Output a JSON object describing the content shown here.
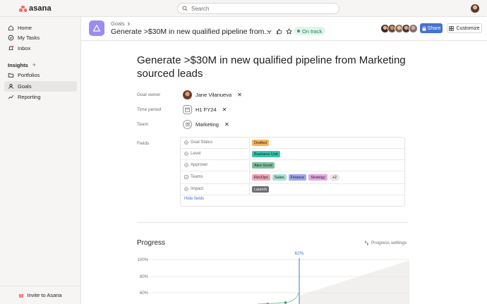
{
  "app": {
    "logo": "asana",
    "search_placeholder": "Search"
  },
  "sidebar": {
    "items": [
      {
        "label": "Home",
        "icon": "home-icon"
      },
      {
        "label": "My Tasks",
        "icon": "check-circle-icon"
      },
      {
        "label": "Inbox",
        "icon": "bell-icon"
      }
    ],
    "section": "Insights",
    "insights_items": [
      {
        "label": "Portfolios",
        "icon": "folder-icon"
      },
      {
        "label": "Goals",
        "icon": "person-icon"
      },
      {
        "label": "Reporting",
        "icon": "trend-icon"
      }
    ],
    "invite": "Invite to Asana"
  },
  "header": {
    "breadcrumb": "Goals",
    "title": "Generate >$30M in new qualified pipeline from...",
    "status": "On track",
    "member_count": "5",
    "share": "Share",
    "customize": "Customize"
  },
  "goal": {
    "title": "Generate >$30M in new qualified pipeline from Marketing sourced leads",
    "owner_label": "Goal owner",
    "owner": "Jane Vilanueva",
    "time_label": "Time period",
    "time": "H1 FY24",
    "team_label": "Team",
    "team": "Marketing",
    "fields_label": "Fields",
    "fields": [
      {
        "name": "Goal Status",
        "tags": [
          {
            "text": "Drafted",
            "color": "#f5b55a"
          }
        ]
      },
      {
        "name": "Level",
        "tags": [
          {
            "text": "Business Unit",
            "color": "#37c5ab"
          }
        ]
      },
      {
        "name": "Approver",
        "tags": [
          {
            "text": "Alex Good",
            "color": "#7fc19e"
          }
        ]
      },
      {
        "name": "Teams",
        "tags": [
          {
            "text": "RevOps",
            "color": "#f4a3b4"
          },
          {
            "text": "Sales",
            "color": "#a8e0d6"
          },
          {
            "text": "Finance",
            "color": "#9fa7f0"
          },
          {
            "text": "Strategy",
            "color": "#e8a6e8"
          },
          {
            "text": "+2",
            "color": "#e8e6e4"
          }
        ]
      },
      {
        "name": "Impact",
        "tags": [
          {
            "text": "Launch",
            "color": "#6d6e6f",
            "text_color": "#ffffff"
          }
        ]
      }
    ],
    "hide_fields": "Hide fields"
  },
  "progress": {
    "title": "Progress",
    "settings": "Progress settings",
    "current_label": "62%"
  },
  "chart_data": {
    "type": "line",
    "current_value": 62,
    "y_ticks": [
      "100%",
      "80%",
      "60%"
    ],
    "ylim": [
      0,
      100
    ],
    "grid": true
  }
}
